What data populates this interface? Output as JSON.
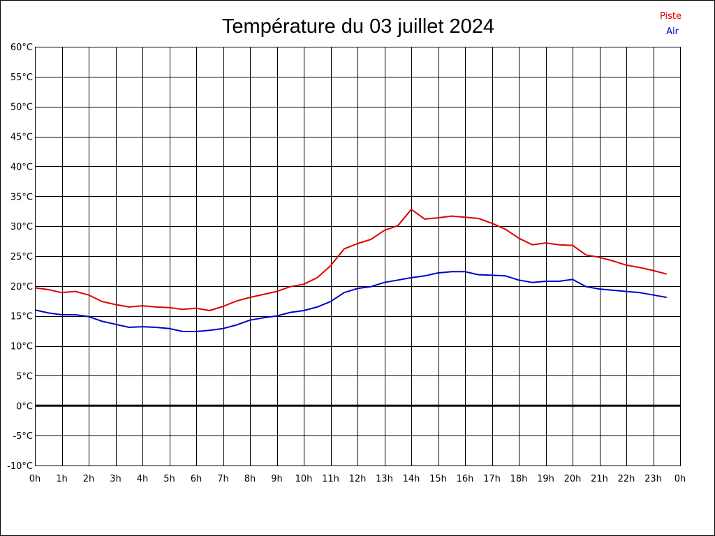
{
  "chart_data": {
    "type": "line",
    "title": "Température du 03 juillet 2024",
    "xlabel": "",
    "ylabel": "",
    "x_unit": "h",
    "x": [
      0,
      0.5,
      1,
      1.5,
      2,
      2.5,
      3,
      3.5,
      4,
      4.5,
      5,
      5.5,
      6,
      6.5,
      7,
      7.5,
      8,
      8.5,
      9,
      9.5,
      10,
      10.5,
      11,
      11.5,
      12,
      12.5,
      13,
      13.5,
      14,
      14.5,
      15,
      15.5,
      16,
      16.5,
      17,
      17.5,
      18,
      18.5,
      19,
      19.5,
      20,
      20.5,
      21,
      21.5,
      22,
      22.5,
      23,
      23.5
    ],
    "x_tick_labels": [
      "0h",
      "1h",
      "2h",
      "3h",
      "4h",
      "5h",
      "6h",
      "7h",
      "8h",
      "9h",
      "10h",
      "11h",
      "12h",
      "13h",
      "14h",
      "15h",
      "16h",
      "17h",
      "18h",
      "19h",
      "20h",
      "21h",
      "22h",
      "23h",
      "0h"
    ],
    "y_tick_labels": [
      "60°C",
      "55°C",
      "50°C",
      "45°C",
      "40°C",
      "35°C",
      "30°C",
      "25°C",
      "20°C",
      "15°C",
      "10°C",
      "5°C",
      "0°C",
      "-5°C",
      "-10°C"
    ],
    "ylim": [
      -10,
      60
    ],
    "xlim": [
      0,
      24
    ],
    "grid": true,
    "zero_line": true,
    "legend_position": "top-right",
    "series": [
      {
        "name": "Piste",
        "color": "#dd0000",
        "values": [
          19.7,
          19.4,
          18.9,
          19.1,
          18.5,
          17.4,
          16.9,
          16.5,
          16.7,
          16.5,
          16.4,
          16.1,
          16.3,
          15.9,
          16.6,
          17.5,
          18.1,
          18.6,
          19.1,
          19.9,
          20.3,
          21.4,
          23.4,
          26.2,
          27.1,
          27.8,
          29.3,
          30.1,
          32.8,
          31.2,
          31.4,
          31.7,
          31.5,
          31.3,
          30.5,
          29.5,
          28.0,
          26.9,
          27.2,
          26.9,
          26.8,
          25.2,
          24.8,
          24.2,
          23.5,
          23.1,
          22.6,
          22.0
        ]
      },
      {
        "name": "Air",
        "color": "#0000cc",
        "values": [
          16.0,
          15.5,
          15.2,
          15.2,
          14.9,
          14.1,
          13.6,
          13.1,
          13.2,
          13.1,
          12.9,
          12.4,
          12.4,
          12.6,
          12.9,
          13.5,
          14.3,
          14.7,
          15.0,
          15.6,
          15.9,
          16.5,
          17.4,
          18.9,
          19.6,
          19.9,
          20.6,
          21.0,
          21.4,
          21.7,
          22.2,
          22.4,
          22.4,
          21.9,
          21.8,
          21.7,
          21.0,
          20.6,
          20.8,
          20.8,
          21.1,
          19.9,
          19.5,
          19.3,
          19.1,
          18.9,
          18.5,
          18.1
        ]
      }
    ]
  }
}
